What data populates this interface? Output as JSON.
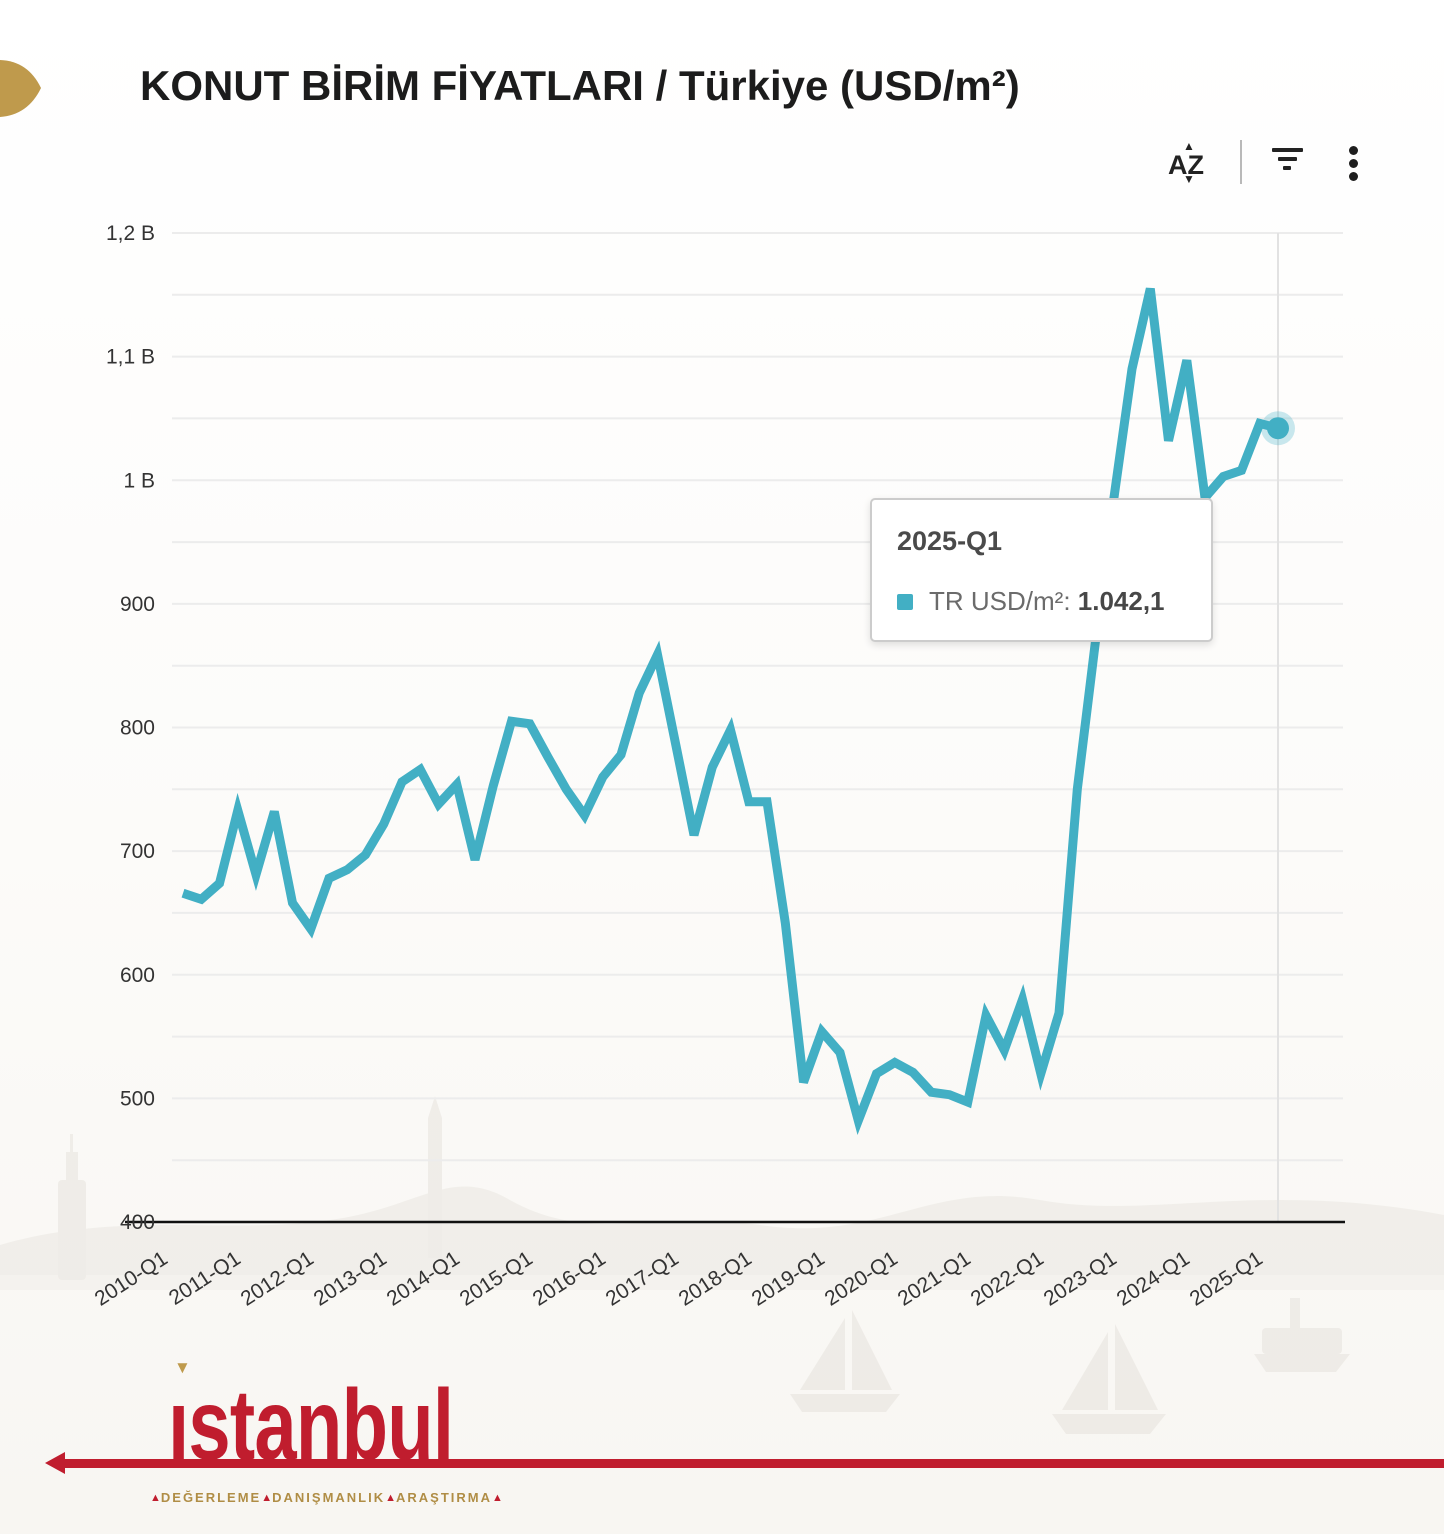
{
  "header": {
    "title": "KONUT BİRİM FİYATLARI / Türkiye (USD/m²)"
  },
  "toolbar": {
    "sort_letter_a": "A",
    "sort_letter_z": "Z",
    "sort_caret_up": "▲",
    "sort_caret_down": "▼"
  },
  "tooltip": {
    "title": "2025-Q1",
    "series_label": "TR USD/m²: ",
    "value": "1.042,1"
  },
  "chart_data": {
    "type": "line",
    "title": "KONUT BİRİM FİYATLARI / Türkiye (USD/m²)",
    "xlabel": "",
    "ylabel": "",
    "ylim": [
      400,
      1200
    ],
    "grid": "horizontal, every 50",
    "legend_position": "none",
    "categories": [
      "2010-Q1",
      "2010-Q2",
      "2010-Q3",
      "2010-Q4",
      "2011-Q1",
      "2011-Q2",
      "2011-Q3",
      "2011-Q4",
      "2012-Q1",
      "2012-Q2",
      "2012-Q3",
      "2012-Q4",
      "2013-Q1",
      "2013-Q2",
      "2013-Q3",
      "2013-Q4",
      "2014-Q1",
      "2014-Q2",
      "2014-Q3",
      "2014-Q4",
      "2015-Q1",
      "2015-Q2",
      "2015-Q3",
      "2015-Q4",
      "2016-Q1",
      "2016-Q2",
      "2016-Q3",
      "2016-Q4",
      "2017-Q1",
      "2017-Q2",
      "2017-Q3",
      "2017-Q4",
      "2018-Q1",
      "2018-Q2",
      "2018-Q3",
      "2018-Q4",
      "2019-Q1",
      "2019-Q2",
      "2019-Q3",
      "2019-Q4",
      "2020-Q1",
      "2020-Q2",
      "2020-Q3",
      "2020-Q4",
      "2021-Q1",
      "2021-Q2",
      "2021-Q3",
      "2021-Q4",
      "2022-Q1",
      "2022-Q2",
      "2022-Q3",
      "2022-Q4",
      "2023-Q1",
      "2023-Q2",
      "2023-Q3",
      "2023-Q4",
      "2024-Q1",
      "2024-Q2",
      "2024-Q3",
      "2024-Q4",
      "2025-Q1"
    ],
    "series": [
      {
        "name": "TR USD/m²",
        "color": "#42afc4",
        "values": [
          666,
          661,
          674,
          733,
          681,
          732,
          658,
          637,
          678,
          685,
          697,
          722,
          756,
          766,
          738,
          754,
          693,
          753,
          805,
          803,
          776,
          750,
          729,
          760,
          778,
          828,
          859,
          786,
          713,
          768,
          798,
          740,
          740,
          642,
          513,
          554,
          537,
          482,
          520,
          529,
          521,
          505,
          503,
          497,
          567,
          539,
          580,
          520,
          569,
          750,
          870,
          985,
          1090,
          1155,
          1032,
          1097,
          986,
          1003,
          1008,
          1046,
          1042.1
        ]
      }
    ],
    "x_tick_labels": [
      "2010-Q1",
      "2011-Q1",
      "2012-Q1",
      "2013-Q1",
      "2014-Q1",
      "2015-Q1",
      "2016-Q1",
      "2017-Q1",
      "2018-Q1",
      "2019-Q1",
      "2020-Q1",
      "2021-Q1",
      "2022-Q1",
      "2023-Q1",
      "2024-Q1",
      "2025-Q1"
    ],
    "y_ticks": [
      {
        "label": "400",
        "value": 400
      },
      {
        "label": "500",
        "value": 500
      },
      {
        "label": "600",
        "value": 600
      },
      {
        "label": "700",
        "value": 700
      },
      {
        "label": "800",
        "value": 800
      },
      {
        "label": "900",
        "value": 900
      },
      {
        "label": "1 B",
        "value": 1000
      },
      {
        "label": "1,1 B",
        "value": 1100
      },
      {
        "label": "1,2 B",
        "value": 1200
      }
    ],
    "highlight": {
      "category": "2025-Q1",
      "value": 1042.1
    }
  },
  "logo": {
    "wordmark": "ıstanbul",
    "dot_glyph": "▼",
    "tagline_words": [
      "DEĞERLEME",
      "DANIŞMANLIK",
      "ARAŞTIRMA"
    ],
    "tagline_triangle": "▲"
  },
  "colors": {
    "series": "#42afc4",
    "grid": "#ececec",
    "axis": "#111111",
    "hover_line": "#e2e2e2",
    "tick_text": "#333333",
    "logo_red": "#c01d2e",
    "gold": "#bf9a4c"
  }
}
